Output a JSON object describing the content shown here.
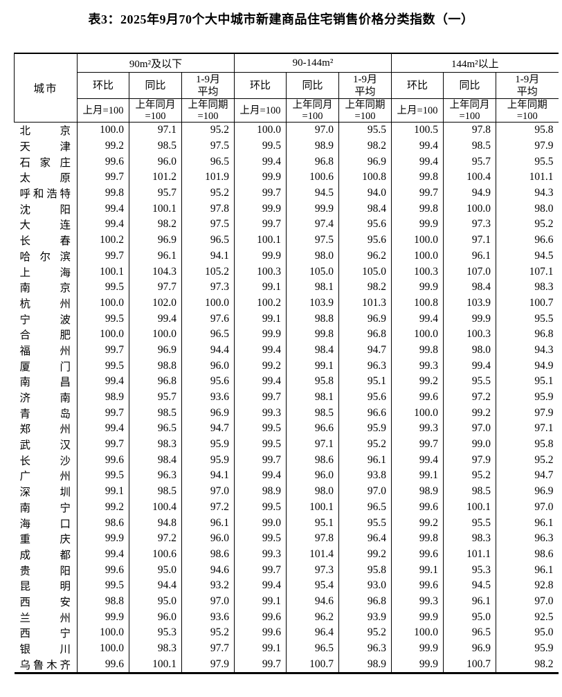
{
  "title": "表3：2025年9月70个大中城市新建商品住宅销售价格分类指数（一）",
  "table": {
    "city_header": "城市",
    "groups": [
      {
        "label": "90m²及以下",
        "columns": [
          {
            "label": "环比",
            "base": "上月=100"
          },
          {
            "label": "同比",
            "base": "上年同月\n=100"
          },
          {
            "label": "1-9月\n平均",
            "base": "上年同期\n=100"
          }
        ]
      },
      {
        "label": "90-144m²",
        "columns": [
          {
            "label": "环比",
            "base": "上月=100"
          },
          {
            "label": "同比",
            "base": "上年同月\n=100"
          },
          {
            "label": "1-9月\n平均",
            "base": "上年同期\n=100"
          }
        ]
      },
      {
        "label": "144m²以上",
        "columns": [
          {
            "label": "环比",
            "base": "上月=100"
          },
          {
            "label": "同比",
            "base": "上年同月\n=100"
          },
          {
            "label": "1-9月\n平均",
            "base": "上年同期\n=100"
          }
        ]
      }
    ],
    "rows": [
      {
        "city": "北京",
        "values": [
          "100.0",
          "97.1",
          "95.2",
          "100.0",
          "97.0",
          "95.5",
          "100.5",
          "97.8",
          "95.8"
        ]
      },
      {
        "city": "天津",
        "values": [
          "99.2",
          "98.5",
          "97.5",
          "99.5",
          "98.9",
          "98.2",
          "99.4",
          "98.5",
          "97.9"
        ]
      },
      {
        "city": "石家庄",
        "values": [
          "99.6",
          "96.0",
          "96.5",
          "99.4",
          "96.8",
          "96.9",
          "99.4",
          "95.7",
          "95.5"
        ]
      },
      {
        "city": "太原",
        "values": [
          "99.7",
          "101.2",
          "101.9",
          "99.9",
          "100.6",
          "100.8",
          "99.8",
          "100.4",
          "101.1"
        ]
      },
      {
        "city": "呼和浩特",
        "values": [
          "99.8",
          "95.7",
          "95.2",
          "99.7",
          "94.5",
          "94.0",
          "99.7",
          "94.9",
          "94.3"
        ]
      },
      {
        "city": "沈阳",
        "values": [
          "99.4",
          "100.1",
          "97.8",
          "99.9",
          "99.9",
          "98.4",
          "99.8",
          "100.0",
          "98.0"
        ]
      },
      {
        "city": "大连",
        "values": [
          "99.4",
          "98.2",
          "97.5",
          "99.7",
          "97.4",
          "95.6",
          "99.9",
          "97.3",
          "95.2"
        ]
      },
      {
        "city": "长春",
        "values": [
          "100.2",
          "96.9",
          "96.5",
          "100.1",
          "97.5",
          "95.6",
          "100.0",
          "97.1",
          "96.6"
        ]
      },
      {
        "city": "哈尔滨",
        "values": [
          "99.7",
          "96.1",
          "94.1",
          "99.9",
          "98.0",
          "96.2",
          "100.0",
          "96.1",
          "94.5"
        ]
      },
      {
        "city": "上海",
        "values": [
          "100.1",
          "104.3",
          "105.2",
          "100.3",
          "105.0",
          "105.0",
          "100.3",
          "107.0",
          "107.1"
        ]
      },
      {
        "city": "南京",
        "values": [
          "99.5",
          "97.7",
          "97.3",
          "99.1",
          "98.1",
          "98.2",
          "99.9",
          "98.4",
          "98.3"
        ]
      },
      {
        "city": "杭州",
        "values": [
          "100.0",
          "102.0",
          "100.0",
          "100.2",
          "103.9",
          "101.3",
          "100.8",
          "103.9",
          "100.7"
        ]
      },
      {
        "city": "宁波",
        "values": [
          "99.5",
          "99.4",
          "97.6",
          "99.1",
          "98.8",
          "96.9",
          "99.4",
          "99.9",
          "95.5"
        ]
      },
      {
        "city": "合肥",
        "values": [
          "100.0",
          "100.0",
          "96.5",
          "99.9",
          "99.8",
          "96.8",
          "100.0",
          "100.3",
          "96.8"
        ]
      },
      {
        "city": "福州",
        "values": [
          "99.7",
          "96.9",
          "94.4",
          "99.4",
          "98.4",
          "94.7",
          "99.8",
          "98.0",
          "94.3"
        ]
      },
      {
        "city": "厦门",
        "values": [
          "99.5",
          "98.8",
          "96.0",
          "99.2",
          "99.1",
          "96.3",
          "99.3",
          "99.4",
          "94.9"
        ]
      },
      {
        "city": "南昌",
        "values": [
          "99.4",
          "96.8",
          "95.6",
          "99.4",
          "95.8",
          "95.1",
          "99.2",
          "95.5",
          "95.1"
        ]
      },
      {
        "city": "济南",
        "values": [
          "98.9",
          "95.7",
          "93.6",
          "99.7",
          "98.1",
          "95.6",
          "99.6",
          "97.2",
          "95.9"
        ]
      },
      {
        "city": "青岛",
        "values": [
          "99.7",
          "98.5",
          "96.9",
          "99.3",
          "98.5",
          "96.6",
          "100.0",
          "99.2",
          "97.9"
        ]
      },
      {
        "city": "郑州",
        "values": [
          "99.4",
          "96.5",
          "94.7",
          "99.5",
          "96.6",
          "95.9",
          "99.3",
          "97.0",
          "97.1"
        ]
      },
      {
        "city": "武汉",
        "values": [
          "99.7",
          "98.3",
          "95.9",
          "99.5",
          "97.1",
          "95.2",
          "99.7",
          "99.0",
          "95.8"
        ]
      },
      {
        "city": "长沙",
        "values": [
          "99.6",
          "98.4",
          "95.9",
          "99.7",
          "98.6",
          "96.1",
          "99.4",
          "97.9",
          "95.2"
        ]
      },
      {
        "city": "广州",
        "values": [
          "99.5",
          "96.3",
          "94.1",
          "99.4",
          "96.0",
          "93.8",
          "99.1",
          "95.2",
          "94.7"
        ]
      },
      {
        "city": "深圳",
        "values": [
          "99.1",
          "98.5",
          "97.0",
          "98.9",
          "98.0",
          "97.0",
          "98.9",
          "98.5",
          "96.9"
        ]
      },
      {
        "city": "南宁",
        "values": [
          "99.2",
          "100.4",
          "97.2",
          "99.5",
          "100.1",
          "96.5",
          "99.6",
          "100.1",
          "97.0"
        ]
      },
      {
        "city": "海口",
        "values": [
          "98.6",
          "94.8",
          "96.1",
          "99.0",
          "95.1",
          "95.5",
          "99.2",
          "95.5",
          "96.1"
        ]
      },
      {
        "city": "重庆",
        "values": [
          "99.9",
          "97.2",
          "96.0",
          "99.5",
          "97.8",
          "96.4",
          "99.8",
          "98.3",
          "96.3"
        ]
      },
      {
        "city": "成都",
        "values": [
          "99.4",
          "100.6",
          "98.6",
          "99.3",
          "101.4",
          "99.2",
          "99.6",
          "101.1",
          "98.6"
        ]
      },
      {
        "city": "贵阳",
        "values": [
          "99.6",
          "95.0",
          "94.6",
          "99.7",
          "97.3",
          "95.8",
          "99.1",
          "95.3",
          "96.1"
        ]
      },
      {
        "city": "昆明",
        "values": [
          "99.5",
          "94.4",
          "93.2",
          "99.4",
          "95.4",
          "93.0",
          "99.6",
          "94.5",
          "92.8"
        ]
      },
      {
        "city": "西安",
        "values": [
          "98.8",
          "95.0",
          "97.0",
          "99.1",
          "94.6",
          "96.8",
          "99.3",
          "96.1",
          "97.0"
        ]
      },
      {
        "city": "兰州",
        "values": [
          "99.9",
          "96.0",
          "93.6",
          "99.6",
          "96.2",
          "93.9",
          "99.9",
          "95.0",
          "92.5"
        ]
      },
      {
        "city": "西宁",
        "values": [
          "100.0",
          "95.3",
          "95.2",
          "99.6",
          "96.4",
          "95.2",
          "100.0",
          "96.5",
          "95.0"
        ]
      },
      {
        "city": "银川",
        "values": [
          "100.0",
          "98.3",
          "97.7",
          "99.1",
          "96.5",
          "96.3",
          "99.9",
          "96.9",
          "95.9"
        ]
      },
      {
        "city": "乌鲁木齐",
        "values": [
          "99.6",
          "100.1",
          "97.9",
          "99.7",
          "100.7",
          "98.9",
          "99.9",
          "100.7",
          "98.2"
        ]
      }
    ]
  }
}
